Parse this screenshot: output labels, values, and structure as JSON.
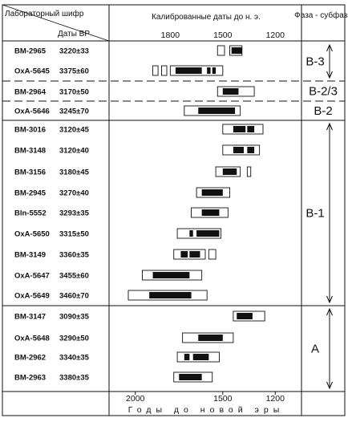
{
  "chart_data": {
    "type": "range",
    "header": {
      "lab_code": "Лабораторный шифр",
      "bp_dates": "Даты ВР",
      "calibrated": "Калиброванные даты до н. э.",
      "phase": "Фаза - субфаза"
    },
    "x_axis": {
      "label": "Годы до новой эры",
      "reversed": true,
      "range": [
        2150,
        1050
      ],
      "top_ticks": [
        1800,
        1500,
        1200
      ],
      "bottom_ticks": [
        2000,
        1500,
        1200
      ]
    },
    "samples": [
      {
        "code": "BM-2965",
        "bp": "3220±33",
        "sigma2": [
          [
            1530,
            1490
          ],
          [
            1460,
            1390
          ]
        ],
        "sigma1": [
          [
            1450,
            1390
          ]
        ]
      },
      {
        "code": "OxA-5645",
        "bp": "3375±60",
        "sigma2": [
          [
            1900,
            1870
          ],
          [
            1850,
            1820
          ],
          [
            1800,
            1500
          ]
        ],
        "sigma1": [
          [
            1770,
            1620
          ],
          [
            1590,
            1570
          ],
          [
            1560,
            1540
          ]
        ]
      },
      {
        "code": "BM-2964",
        "bp": "3170±50",
        "sigma2": [
          [
            1530,
            1320
          ]
        ],
        "sigma1": [
          [
            1500,
            1410
          ]
        ]
      },
      {
        "code": "OxA-5646",
        "bp": "3245±70",
        "sigma2": [
          [
            1720,
            1400
          ]
        ],
        "sigma1": [
          [
            1640,
            1430
          ]
        ]
      },
      {
        "code": "BM-3016",
        "bp": "3120±45",
        "sigma2": [
          [
            1500,
            1270
          ]
        ],
        "sigma1": [
          [
            1440,
            1370
          ],
          [
            1360,
            1320
          ]
        ]
      },
      {
        "code": "BM-3148",
        "bp": "3120±40",
        "sigma2": [
          [
            1500,
            1290
          ]
        ],
        "sigma1": [
          [
            1440,
            1380
          ],
          [
            1360,
            1320
          ]
        ]
      },
      {
        "code": "BM-3156",
        "bp": "3180±45",
        "sigma2": [
          [
            1540,
            1400
          ],
          [
            1360,
            1340
          ]
        ],
        "sigma1": [
          [
            1500,
            1420
          ]
        ]
      },
      {
        "code": "BM-2945",
        "bp": "3270±40",
        "sigma2": [
          [
            1650,
            1460
          ]
        ],
        "sigma1": [
          [
            1620,
            1500
          ]
        ]
      },
      {
        "code": "Bln-5552",
        "bp": "3293±35",
        "sigma2": [
          [
            1680,
            1470
          ]
        ],
        "sigma1": [
          [
            1620,
            1520
          ]
        ]
      },
      {
        "code": "OxA-5650",
        "bp": "3315±50",
        "sigma2": [
          [
            1760,
            1510
          ]
        ],
        "sigma1": [
          [
            1690,
            1670
          ],
          [
            1650,
            1520
          ]
        ]
      },
      {
        "code": "BM-3149",
        "bp": "3360±35",
        "sigma2": [
          [
            1780,
            1600
          ],
          [
            1580,
            1540
          ]
        ],
        "sigma1": [
          [
            1740,
            1700
          ],
          [
            1690,
            1630
          ]
        ]
      },
      {
        "code": "OxA-5647",
        "bp": "3455±60",
        "sigma2": [
          [
            1960,
            1620
          ]
        ],
        "sigma1": [
          [
            1900,
            1690
          ]
        ]
      },
      {
        "code": "OxA-5649",
        "bp": "3460±70",
        "sigma2": [
          [
            2040,
            1590
          ]
        ],
        "sigma1": [
          [
            1920,
            1680
          ]
        ]
      },
      {
        "code": "BM-3147",
        "bp": "3090±35",
        "sigma2": [
          [
            1440,
            1260
          ]
        ],
        "sigma1": [
          [
            1420,
            1330
          ]
        ]
      },
      {
        "code": "OxA-5648",
        "bp": "3290±50",
        "sigma2": [
          [
            1730,
            1440
          ]
        ],
        "sigma1": [
          [
            1640,
            1500
          ]
        ]
      },
      {
        "code": "BM-2962",
        "bp": "3340±35",
        "sigma2": [
          [
            1760,
            1520
          ]
        ],
        "sigma1": [
          [
            1720,
            1690
          ],
          [
            1670,
            1580
          ]
        ]
      },
      {
        "code": "BM-2963",
        "bp": "3380±35",
        "sigma2": [
          [
            1780,
            1560
          ]
        ],
        "sigma1": [
          [
            1750,
            1620
          ]
        ]
      }
    ],
    "phases": [
      {
        "label": "B-3",
        "rows": [
          0,
          1
        ],
        "arrow": true
      },
      {
        "label": "B-2/3",
        "rows": [
          2,
          2
        ],
        "arrow": false
      },
      {
        "label": "B-2",
        "rows": [
          3,
          3
        ],
        "arrow": false
      },
      {
        "label": "B-1",
        "rows": [
          4,
          12
        ],
        "arrow": true
      },
      {
        "label": "A",
        "rows": [
          13,
          16
        ],
        "arrow": true
      }
    ],
    "grid": false
  }
}
